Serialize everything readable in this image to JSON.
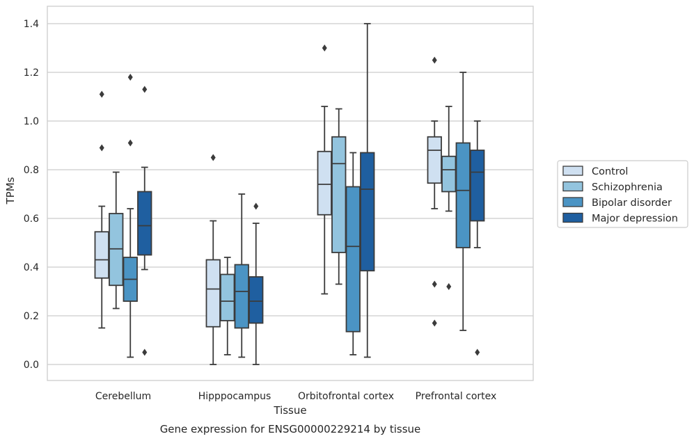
{
  "chart_data": {
    "type": "boxplot",
    "caption": "Gene expression for ENSG00000229214 by tissue",
    "xlabel": "Tissue",
    "ylabel": "TPMs",
    "ylim": [
      -0.065,
      1.47
    ],
    "yticks": [
      0.0,
      0.2,
      0.4,
      0.6,
      0.8,
      1.0,
      1.2,
      1.4
    ],
    "ytick_labels": [
      "0.0",
      "0.2",
      "0.4",
      "0.6",
      "0.8",
      "1.0",
      "1.2",
      "1.4"
    ],
    "grid": "horizontal",
    "legend_position": "right",
    "categories": [
      "Cerebellum",
      "Hipppocampus",
      "Orbitofrontal cortex",
      "Prefrontal cortex"
    ],
    "series": [
      {
        "name": "Control",
        "color": "#cfe0f1",
        "boxes": [
          {
            "whislo": 0.15,
            "q1": 0.355,
            "med": 0.43,
            "q3": 0.545,
            "whishi": 0.65,
            "fliers": [
              0.89,
              1.11
            ]
          },
          {
            "whislo": 0.0,
            "q1": 0.155,
            "med": 0.31,
            "q3": 0.43,
            "whishi": 0.59,
            "fliers": [
              0.85
            ]
          },
          {
            "whislo": 0.29,
            "q1": 0.615,
            "med": 0.74,
            "q3": 0.875,
            "whishi": 1.06,
            "fliers": [
              1.3
            ]
          },
          {
            "whislo": 0.64,
            "q1": 0.745,
            "med": 0.88,
            "q3": 0.935,
            "whishi": 1.0,
            "fliers": [
              0.17,
              0.33,
              1.25
            ]
          }
        ]
      },
      {
        "name": "Schizophrenia",
        "color": "#93c4de",
        "boxes": [
          {
            "whislo": 0.23,
            "q1": 0.325,
            "med": 0.475,
            "q3": 0.62,
            "whishi": 0.79,
            "fliers": []
          },
          {
            "whislo": 0.04,
            "q1": 0.18,
            "med": 0.26,
            "q3": 0.37,
            "whishi": 0.44,
            "fliers": []
          },
          {
            "whislo": 0.33,
            "q1": 0.46,
            "med": 0.825,
            "q3": 0.935,
            "whishi": 1.05,
            "fliers": []
          },
          {
            "whislo": 0.63,
            "q1": 0.71,
            "med": 0.8,
            "q3": 0.855,
            "whishi": 1.06,
            "fliers": [
              0.32
            ]
          }
        ]
      },
      {
        "name": "Bipolar disorder",
        "color": "#4b94c4",
        "boxes": [
          {
            "whislo": 0.03,
            "q1": 0.26,
            "med": 0.35,
            "q3": 0.44,
            "whishi": 0.64,
            "fliers": [
              0.91,
              1.18
            ]
          },
          {
            "whislo": 0.03,
            "q1": 0.15,
            "med": 0.3,
            "q3": 0.41,
            "whishi": 0.7,
            "fliers": []
          },
          {
            "whislo": 0.04,
            "q1": 0.135,
            "med": 0.485,
            "q3": 0.73,
            "whishi": 0.87,
            "fliers": []
          },
          {
            "whislo": 0.14,
            "q1": 0.48,
            "med": 0.715,
            "q3": 0.91,
            "whishi": 1.2,
            "fliers": []
          }
        ]
      },
      {
        "name": "Major depression",
        "color": "#1f5fa0",
        "boxes": [
          {
            "whislo": 0.39,
            "q1": 0.45,
            "med": 0.57,
            "q3": 0.71,
            "whishi": 0.81,
            "fliers": [
              0.05,
              1.13
            ]
          },
          {
            "whislo": 0.0,
            "q1": 0.17,
            "med": 0.26,
            "q3": 0.36,
            "whishi": 0.58,
            "fliers": [
              0.65
            ]
          },
          {
            "whislo": 0.03,
            "q1": 0.385,
            "med": 0.72,
            "q3": 0.87,
            "whishi": 1.4,
            "fliers": []
          },
          {
            "whislo": 0.48,
            "q1": 0.59,
            "med": 0.79,
            "q3": 0.88,
            "whishi": 1.0,
            "fliers": [
              0.05
            ]
          }
        ]
      }
    ]
  }
}
